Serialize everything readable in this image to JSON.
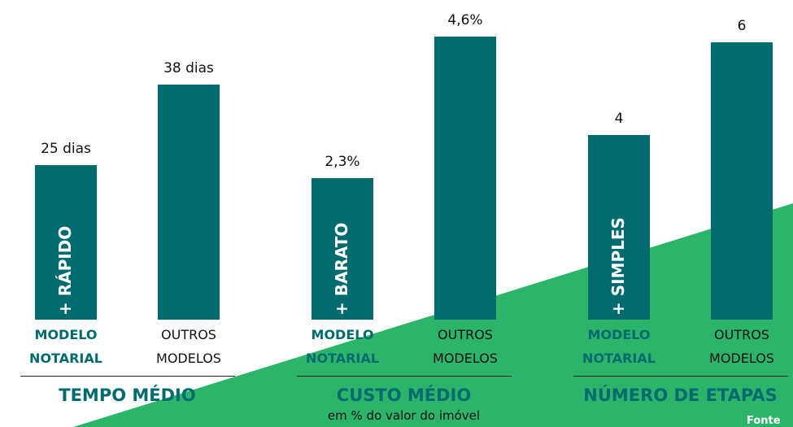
{
  "chart_data": [
    {
      "type": "bar",
      "title": "TEMPO MÉDIO",
      "annotation": "+ RÁPIDO",
      "categories": [
        "MODELO NOTARIAL",
        "OUTROS MODELOS"
      ],
      "values": [
        25,
        38
      ],
      "value_labels": [
        "25 dias",
        "38 dias"
      ],
      "color": "#006b6f"
    },
    {
      "type": "bar",
      "title": "CUSTO MÉDIO",
      "subtitle": "em % do valor do imóvel",
      "annotation": "+ BARATO",
      "categories": [
        "MODELO NOTARIAL",
        "OUTROS MODELOS"
      ],
      "values": [
        2.3,
        4.6
      ],
      "value_labels": [
        "2,3%",
        "4,6%"
      ],
      "color": "#006b6f"
    },
    {
      "type": "bar",
      "title": "NÚMERO DE ETAPAS",
      "annotation": "+ SIMPLES",
      "categories": [
        "MODELO NOTARIAL",
        "OUTROS MODELOS"
      ],
      "values": [
        4,
        6
      ],
      "color": "#006b6f"
    }
  ],
  "footer": "Fonte"
}
